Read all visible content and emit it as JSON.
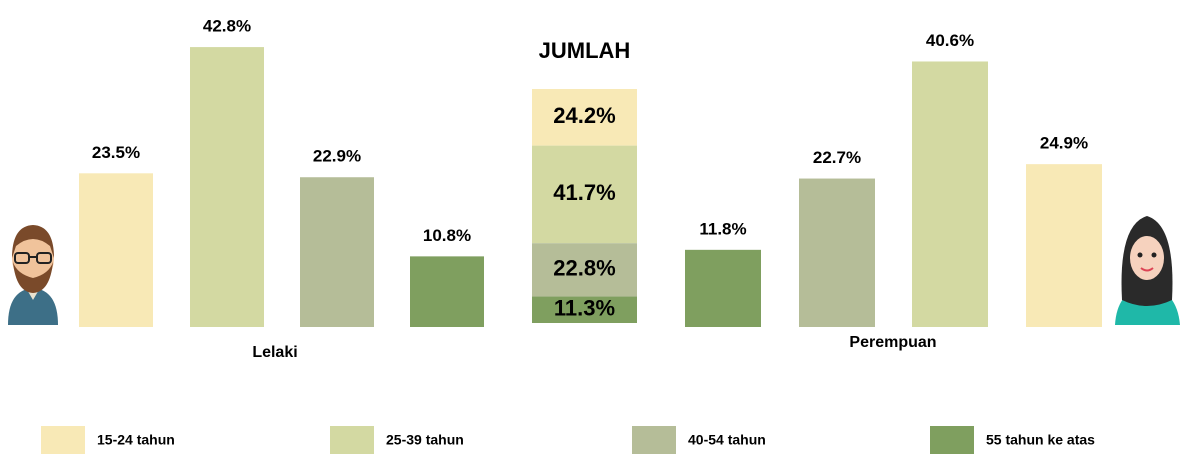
{
  "legend": [
    {
      "name": "15-24 tahun",
      "color": "#f8e9b6"
    },
    {
      "name": "25-39 tahun",
      "color": "#d3d9a2"
    },
    {
      "name": "40-54 tahun",
      "color": "#b5bd98"
    },
    {
      "name": "55 tahun ke atas",
      "color": "#7f9f5f"
    }
  ],
  "chart_data": [
    {
      "type": "bar",
      "label": "Lelaki",
      "values": [
        23.5,
        42.8,
        22.9,
        10.8
      ],
      "value_labels": [
        "23.5%",
        "42.8%",
        "22.9%",
        "10.8%"
      ],
      "colors": [
        "#f8e9b6",
        "#d3d9a2",
        "#b5bd98",
        "#7f9f5f"
      ]
    },
    {
      "type": "stacked",
      "title": "JUMLAH",
      "values": [
        24.2,
        41.7,
        22.8,
        11.3
      ],
      "value_labels": [
        "24.2%",
        "41.7%",
        "22.8%",
        "11.3%"
      ],
      "colors": [
        "#f8e9b6",
        "#d3d9a2",
        "#b5bd98",
        "#7f9f5f"
      ]
    },
    {
      "type": "bar",
      "label": "Perempuan",
      "values": [
        11.8,
        22.7,
        40.6,
        24.9
      ],
      "value_labels": [
        "11.8%",
        "22.7%",
        "40.6%",
        "24.9%"
      ],
      "colors": [
        "#7f9f5f",
        "#b5bd98",
        "#d3d9a2",
        "#f8e9b6"
      ]
    }
  ]
}
